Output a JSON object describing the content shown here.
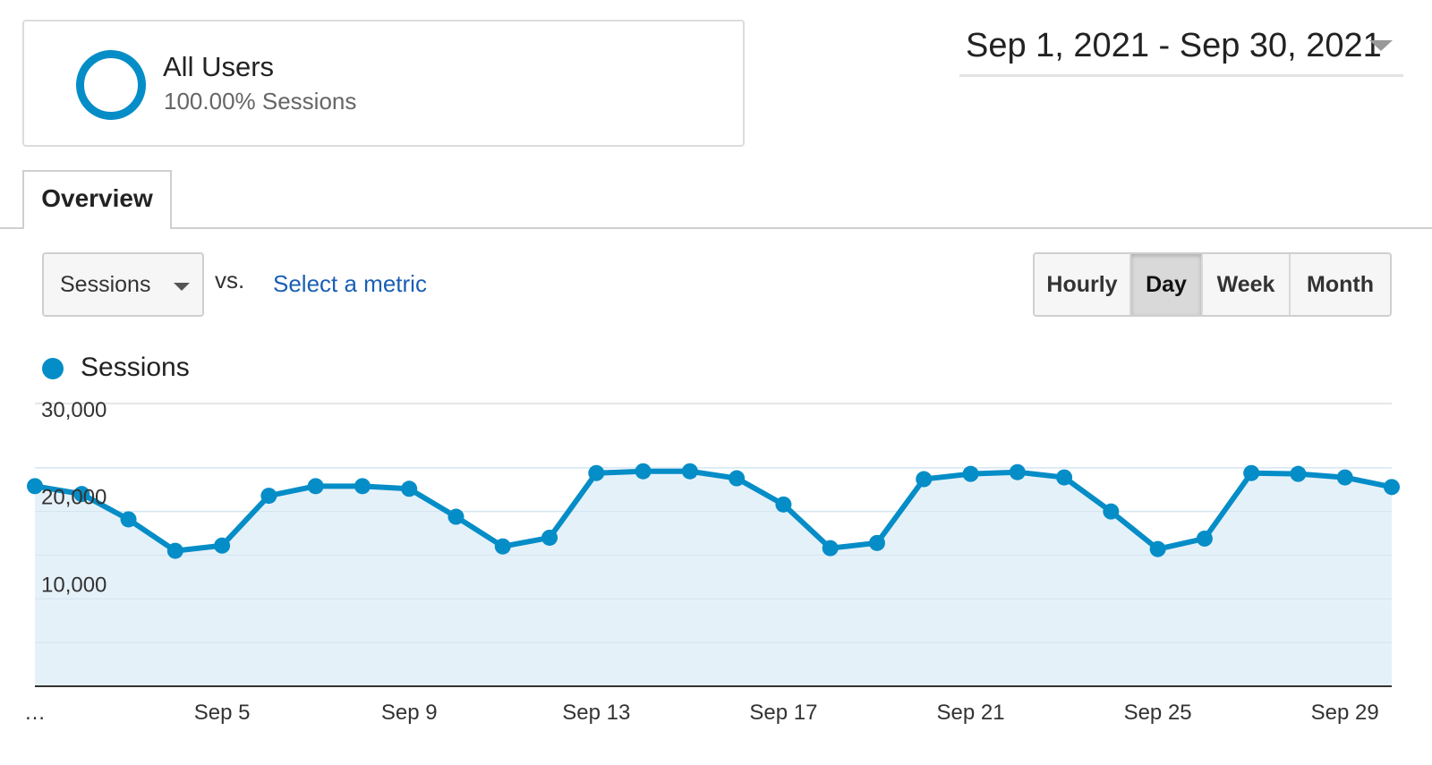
{
  "segment": {
    "name": "All Users",
    "subtitle": "100.00% Sessions"
  },
  "date_range": {
    "label": "Sep 1, 2021 - Sep 30, 2021"
  },
  "tabs": [
    {
      "label": "Overview"
    }
  ],
  "controls": {
    "metric_label": "Sessions",
    "vs_label": "vs.",
    "compare_link": "Select a metric",
    "granularity": [
      "Hourly",
      "Day",
      "Week",
      "Month"
    ],
    "granularity_selected": "Day"
  },
  "legend": {
    "label": "Sessions"
  },
  "colors": {
    "series": "#058dc7",
    "area_fill": "#e5f1f9",
    "gridline": "#e6e6e6"
  },
  "chart_data": {
    "type": "area",
    "series": [
      {
        "name": "Sessions",
        "x": [
          "Sep 1",
          "Sep 2",
          "Sep 3",
          "Sep 4",
          "Sep 5",
          "Sep 6",
          "Sep 7",
          "Sep 8",
          "Sep 9",
          "Sep 10",
          "Sep 11",
          "Sep 12",
          "Sep 13",
          "Sep 14",
          "Sep 15",
          "Sep 16",
          "Sep 17",
          "Sep 18",
          "Sep 19",
          "Sep 20",
          "Sep 21",
          "Sep 22",
          "Sep 23",
          "Sep 24",
          "Sep 25",
          "Sep 26",
          "Sep 27",
          "Sep 28",
          "Sep 29",
          "Sep 30"
        ],
        "values": [
          22900,
          22000,
          19100,
          15500,
          16100,
          21800,
          22900,
          22900,
          22600,
          19400,
          16000,
          17000,
          24400,
          24600,
          24600,
          23800,
          20800,
          15800,
          16400,
          23700,
          24300,
          24500,
          23900,
          20000,
          15700,
          16900,
          24400,
          24300,
          23900,
          22800
        ]
      }
    ],
    "x_tick_labels": [
      "…",
      "Sep 5",
      "Sep 9",
      "Sep 13",
      "Sep 17",
      "Sep 21",
      "Sep 25",
      "Sep 29"
    ],
    "y_tick_labels": [
      "30,000",
      "20,000",
      "10,000"
    ],
    "y_ticks": [
      30000,
      20000,
      10000
    ],
    "ylim": [
      0,
      30000
    ],
    "grid": true,
    "legend_position": "top-left"
  }
}
